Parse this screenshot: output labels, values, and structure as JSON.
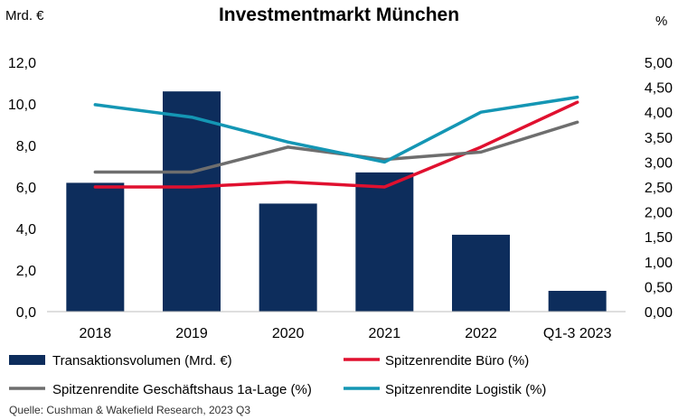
{
  "chart_data": {
    "type": "bar+line",
    "title": "Investmentmarkt München",
    "left_axis_label": "Mrd. €",
    "right_axis_label": "%",
    "categories": [
      "2018",
      "2019",
      "2020",
      "2021",
      "2022",
      "Q1-3 2023"
    ],
    "left_axis": {
      "min": 0,
      "max": 12,
      "step": 2,
      "tick_labels": [
        "0,0",
        "2,0",
        "4,0",
        "6,0",
        "8,0",
        "10,0",
        "12,0"
      ]
    },
    "right_axis": {
      "min": 0,
      "max": 5,
      "step": 0.5,
      "tick_labels": [
        "0,00",
        "0,50",
        "1,00",
        "1,50",
        "2,00",
        "2,50",
        "3,00",
        "3,50",
        "4,00",
        "4,50",
        "5,00"
      ]
    },
    "bars": {
      "name": "Transaktionsvolumen (Mrd. €)",
      "axis": "left",
      "color": "#0d2d5c",
      "values": [
        6.2,
        10.6,
        5.2,
        6.7,
        3.7,
        1.0
      ]
    },
    "lines": [
      {
        "name": "Spitzenrendite Büro (%)",
        "axis": "right",
        "color": "#e0102f",
        "values": [
          2.5,
          2.5,
          2.6,
          2.5,
          3.3,
          4.2
        ]
      },
      {
        "name": "Spitzenrendite Geschäftshaus 1a-Lage (%)",
        "axis": "right",
        "color": "#6e6e6e",
        "values": [
          2.8,
          2.8,
          3.3,
          3.05,
          3.2,
          3.8
        ]
      },
      {
        "name": "Spitzenrendite Logistik (%)",
        "axis": "right",
        "color": "#1496b4",
        "values": [
          4.15,
          3.9,
          3.4,
          3.0,
          4.0,
          4.3
        ]
      }
    ],
    "legend": {
      "placement": "bottom",
      "entries": [
        {
          "label": "Transaktionsvolumen (Mrd. €)",
          "kind": "bar",
          "color": "#0d2d5c"
        },
        {
          "label": "Spitzenrendite Büro (%)",
          "kind": "line",
          "color": "#e0102f"
        },
        {
          "label": "Spitzenrendite Geschäftshaus 1a-Lage (%)",
          "kind": "line",
          "color": "#6e6e6e"
        },
        {
          "label": "Spitzenrendite Logistik (%)",
          "kind": "line",
          "color": "#1496b4"
        }
      ]
    },
    "grid": false,
    "source": "Quelle: Cushman & Wakefield Research, 2023 Q3"
  }
}
